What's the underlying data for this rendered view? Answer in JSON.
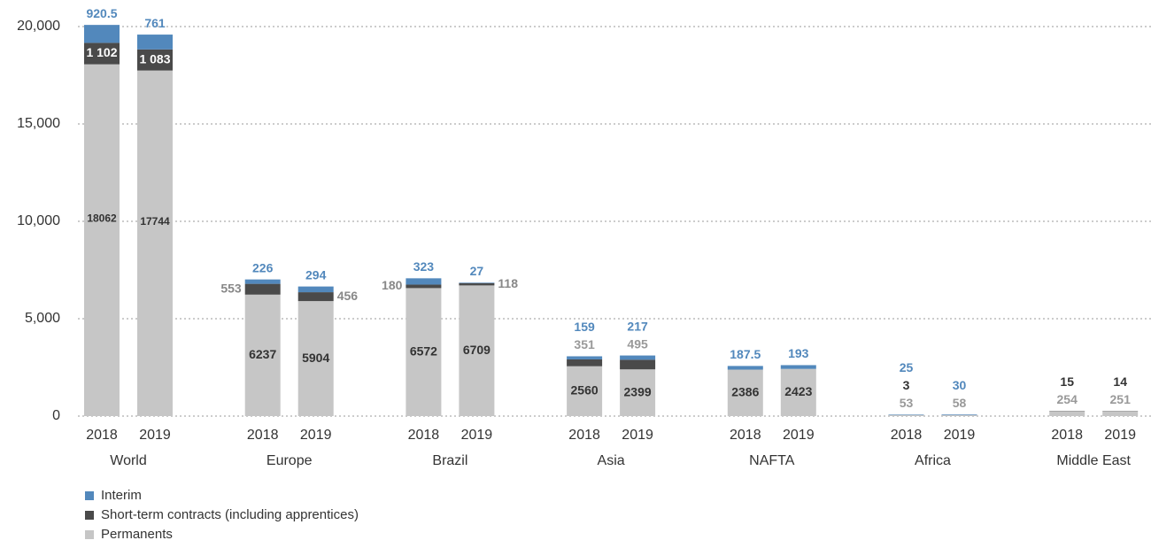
{
  "chart_data": {
    "type": "stacked-bar",
    "categories": [
      "2018",
      "2019",
      "2018",
      "2019",
      "2018",
      "2019",
      "2018",
      "2019",
      "2018",
      "2019",
      "2018",
      "2019",
      "2018",
      "2019"
    ],
    "groups": [
      "World",
      "Europe",
      "Brazil",
      "Asia",
      "NAFTA",
      "Africa",
      "Middle East"
    ],
    "series": [
      {
        "name": "Permanents",
        "color": "#c6c6c6",
        "values": [
          18062,
          17744,
          6237,
          5904,
          6572,
          6709,
          2560,
          2399,
          2386,
          2423,
          53,
          58,
          254,
          251
        ]
      },
      {
        "name": "Short-term contracts (including apprentices)",
        "color": "#4a4a4a",
        "values": [
          1102,
          1083,
          553,
          456,
          180,
          118,
          351,
          495,
          null,
          null,
          3,
          null,
          15,
          14
        ],
        "value_labels": [
          "1 102",
          "1 083",
          "553",
          "456",
          "180",
          "118",
          "351",
          "495",
          null,
          null,
          "3",
          null,
          "15",
          "14"
        ]
      },
      {
        "name": "Interim",
        "color": "#5288bc",
        "values": [
          920.5,
          761,
          226,
          294,
          323,
          27,
          159,
          217,
          187.5,
          193,
          25,
          30,
          null,
          null
        ]
      }
    ],
    "ylim": [
      0,
      20000
    ],
    "yticks": [
      0,
      {
        "value": 5000,
        "label": "5,000"
      },
      {
        "value": 10000,
        "label": "10,000"
      },
      {
        "value": 15000,
        "label": "15,000"
      },
      {
        "value": 20000,
        "label": "20,000"
      }
    ],
    "grid": true
  }
}
